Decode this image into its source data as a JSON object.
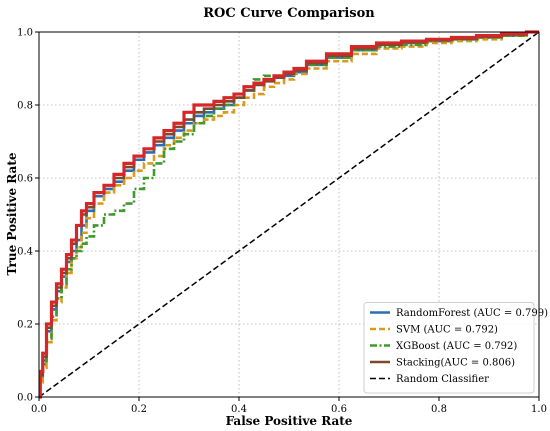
{
  "chart_data": {
    "type": "line",
    "title": "ROC Curve Comparison",
    "xlabel": "False Positive Rate",
    "ylabel": "True Positive Rate",
    "xlim": [
      0.0,
      1.0
    ],
    "ylim": [
      0.0,
      1.0
    ],
    "xticks": [
      "0.0",
      "0.2",
      "0.4",
      "0.6",
      "0.8",
      "1.0"
    ],
    "yticks": [
      "0.0",
      "0.2",
      "0.4",
      "0.6",
      "0.8",
      "1.0"
    ],
    "grid": true,
    "legend_position": "bottom-right",
    "series": [
      {
        "name": "RandomForest (AUC = 0.799)",
        "color": "#2a6fb0",
        "style": "solid",
        "x": [
          0,
          0.005,
          0.01,
          0.02,
          0.03,
          0.04,
          0.05,
          0.06,
          0.07,
          0.08,
          0.09,
          0.1,
          0.12,
          0.14,
          0.16,
          0.18,
          0.2,
          0.22,
          0.24,
          0.26,
          0.28,
          0.3,
          0.32,
          0.34,
          0.36,
          0.38,
          0.4,
          0.42,
          0.44,
          0.46,
          0.48,
          0.5,
          0.52,
          0.55,
          0.6,
          0.65,
          0.7,
          0.75,
          0.8,
          0.85,
          0.9,
          0.95,
          1.0
        ],
        "y": [
          0,
          0.06,
          0.1,
          0.18,
          0.24,
          0.29,
          0.33,
          0.37,
          0.4,
          0.43,
          0.47,
          0.51,
          0.55,
          0.57,
          0.59,
          0.62,
          0.65,
          0.67,
          0.69,
          0.71,
          0.73,
          0.75,
          0.77,
          0.78,
          0.79,
          0.8,
          0.82,
          0.84,
          0.86,
          0.87,
          0.875,
          0.88,
          0.89,
          0.91,
          0.93,
          0.95,
          0.965,
          0.97,
          0.975,
          0.98,
          0.985,
          0.99,
          1.0
        ]
      },
      {
        "name": "SVM (AUC = 0.792)",
        "color": "#d99a1e",
        "style": "dashed",
        "x": [
          0,
          0.005,
          0.01,
          0.02,
          0.03,
          0.04,
          0.05,
          0.06,
          0.07,
          0.08,
          0.09,
          0.1,
          0.12,
          0.14,
          0.16,
          0.18,
          0.2,
          0.22,
          0.24,
          0.26,
          0.28,
          0.3,
          0.32,
          0.34,
          0.36,
          0.38,
          0.4,
          0.42,
          0.44,
          0.46,
          0.48,
          0.5,
          0.52,
          0.55,
          0.6,
          0.65,
          0.7,
          0.75,
          0.8,
          0.85,
          0.9,
          0.95,
          1.0
        ],
        "y": [
          0,
          0.04,
          0.08,
          0.15,
          0.21,
          0.26,
          0.3,
          0.34,
          0.38,
          0.41,
          0.45,
          0.49,
          0.53,
          0.56,
          0.58,
          0.6,
          0.62,
          0.64,
          0.66,
          0.69,
          0.71,
          0.73,
          0.75,
          0.76,
          0.77,
          0.78,
          0.8,
          0.82,
          0.83,
          0.85,
          0.86,
          0.87,
          0.885,
          0.9,
          0.92,
          0.94,
          0.955,
          0.96,
          0.97,
          0.975,
          0.98,
          0.99,
          1.0
        ]
      },
      {
        "name": "XGBoost (AUC = 0.792)",
        "color": "#3f9a2e",
        "style": "dashdot",
        "x": [
          0,
          0.005,
          0.01,
          0.02,
          0.03,
          0.04,
          0.05,
          0.06,
          0.07,
          0.08,
          0.09,
          0.1,
          0.12,
          0.14,
          0.16,
          0.18,
          0.2,
          0.22,
          0.24,
          0.26,
          0.28,
          0.3,
          0.32,
          0.34,
          0.36,
          0.38,
          0.4,
          0.42,
          0.44,
          0.46,
          0.48,
          0.5,
          0.52,
          0.55,
          0.6,
          0.65,
          0.7,
          0.75,
          0.8,
          0.85,
          0.9,
          0.95,
          1.0
        ],
        "y": [
          0,
          0.05,
          0.09,
          0.16,
          0.22,
          0.27,
          0.31,
          0.35,
          0.38,
          0.4,
          0.42,
          0.44,
          0.47,
          0.5,
          0.51,
          0.53,
          0.57,
          0.6,
          0.64,
          0.68,
          0.7,
          0.72,
          0.75,
          0.77,
          0.79,
          0.8,
          0.82,
          0.85,
          0.87,
          0.88,
          0.88,
          0.89,
          0.9,
          0.91,
          0.93,
          0.95,
          0.96,
          0.965,
          0.975,
          0.98,
          0.985,
          0.99,
          1.0
        ]
      },
      {
        "name": "Stacking(AUC = 0.806)",
        "color": "#7a4a2e",
        "style": "solid",
        "x": [
          0,
          0.005,
          0.01,
          0.02,
          0.03,
          0.04,
          0.05,
          0.06,
          0.07,
          0.08,
          0.09,
          0.1,
          0.12,
          0.14,
          0.16,
          0.18,
          0.2,
          0.22,
          0.24,
          0.26,
          0.28,
          0.3,
          0.32,
          0.34,
          0.36,
          0.38,
          0.4,
          0.42,
          0.44,
          0.46,
          0.48,
          0.5,
          0.52,
          0.55,
          0.6,
          0.65,
          0.7,
          0.75,
          0.8,
          0.85,
          0.9,
          0.95,
          1.0
        ],
        "y": [
          0,
          0.06,
          0.11,
          0.19,
          0.25,
          0.3,
          0.34,
          0.38,
          0.42,
          0.47,
          0.5,
          0.52,
          0.56,
          0.58,
          0.6,
          0.63,
          0.66,
          0.68,
          0.7,
          0.72,
          0.74,
          0.76,
          0.78,
          0.79,
          0.8,
          0.81,
          0.82,
          0.84,
          0.855,
          0.865,
          0.875,
          0.885,
          0.895,
          0.915,
          0.935,
          0.955,
          0.965,
          0.972,
          0.978,
          0.982,
          0.987,
          0.993,
          1.0
        ]
      },
      {
        "name": "",
        "color": "#d62728",
        "style": "solid",
        "x": [
          0,
          0.005,
          0.01,
          0.02,
          0.03,
          0.04,
          0.05,
          0.06,
          0.07,
          0.08,
          0.09,
          0.1,
          0.12,
          0.14,
          0.16,
          0.18,
          0.2,
          0.22,
          0.24,
          0.26,
          0.28,
          0.3,
          0.32,
          0.34,
          0.36,
          0.38,
          0.4,
          0.42,
          0.44,
          0.46,
          0.48,
          0.5,
          0.52,
          0.55,
          0.6,
          0.65,
          0.7,
          0.75,
          0.8,
          0.85,
          0.9,
          0.95,
          1.0
        ],
        "y": [
          0,
          0.07,
          0.12,
          0.2,
          0.26,
          0.31,
          0.35,
          0.39,
          0.43,
          0.47,
          0.51,
          0.53,
          0.56,
          0.58,
          0.61,
          0.64,
          0.66,
          0.68,
          0.71,
          0.73,
          0.75,
          0.78,
          0.8,
          0.8,
          0.81,
          0.82,
          0.83,
          0.85,
          0.86,
          0.87,
          0.88,
          0.89,
          0.9,
          0.92,
          0.94,
          0.96,
          0.97,
          0.975,
          0.98,
          0.985,
          0.99,
          0.995,
          1.0
        ]
      },
      {
        "name": "Random Classifier",
        "color": "#000000",
        "style": "dashed",
        "x": [
          0,
          1
        ],
        "y": [
          0,
          1
        ]
      }
    ]
  }
}
